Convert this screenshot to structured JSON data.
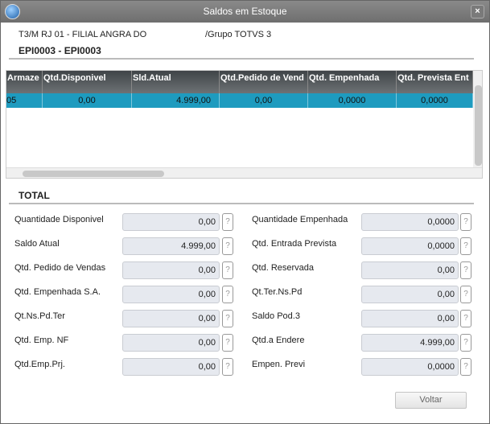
{
  "window": {
    "title": "Saldos em Estoque",
    "close": "×"
  },
  "header": {
    "branch": "T3/M RJ 01  - FILIAL ANGRA DO",
    "group": "/Grupo TOTVS 3",
    "product": "EPI0003 - EPI0003"
  },
  "grid": {
    "columns": [
      "Armaze",
      "Qtd.Disponivel",
      "Sld.Atual",
      "Qtd.Pedido de Vend",
      "Qtd. Empenhada",
      "Qtd. Prevista Ent"
    ],
    "rows": [
      [
        "05",
        "0,00",
        "4.999,00",
        "0,00",
        "0,0000",
        "0,0000"
      ]
    ]
  },
  "total": {
    "title": "TOTAL",
    "left": [
      {
        "label": "Quantidade Disponivel",
        "value": "0,00"
      },
      {
        "label": "Saldo Atual",
        "value": "4.999,00"
      },
      {
        "label": "Qtd. Pedido de Vendas",
        "value": "0,00"
      },
      {
        "label": "Qtd. Empenhada S.A.",
        "value": "0,00"
      },
      {
        "label": "Qt.Ns.Pd.Ter",
        "value": "0,00"
      },
      {
        "label": "Qtd. Emp. NF",
        "value": "0,00"
      },
      {
        "label": "Qtd.Emp.Prj.",
        "value": "0,00"
      }
    ],
    "right": [
      {
        "label": "Quantidade Empenhada",
        "value": "0,0000"
      },
      {
        "label": "Qtd. Entrada Prevista",
        "value": "0,0000"
      },
      {
        "label": "Qtd. Reservada",
        "value": "0,00"
      },
      {
        "label": "Qt.Ter.Ns.Pd",
        "value": "0,00"
      },
      {
        "label": "Saldo Pod.3",
        "value": "0,00"
      },
      {
        "label": "Qtd.a Endere",
        "value": "4.999,00"
      },
      {
        "label": "Empen. Previ",
        "value": "0,0000"
      }
    ],
    "help": "?"
  },
  "buttons": {
    "back": "Voltar"
  }
}
